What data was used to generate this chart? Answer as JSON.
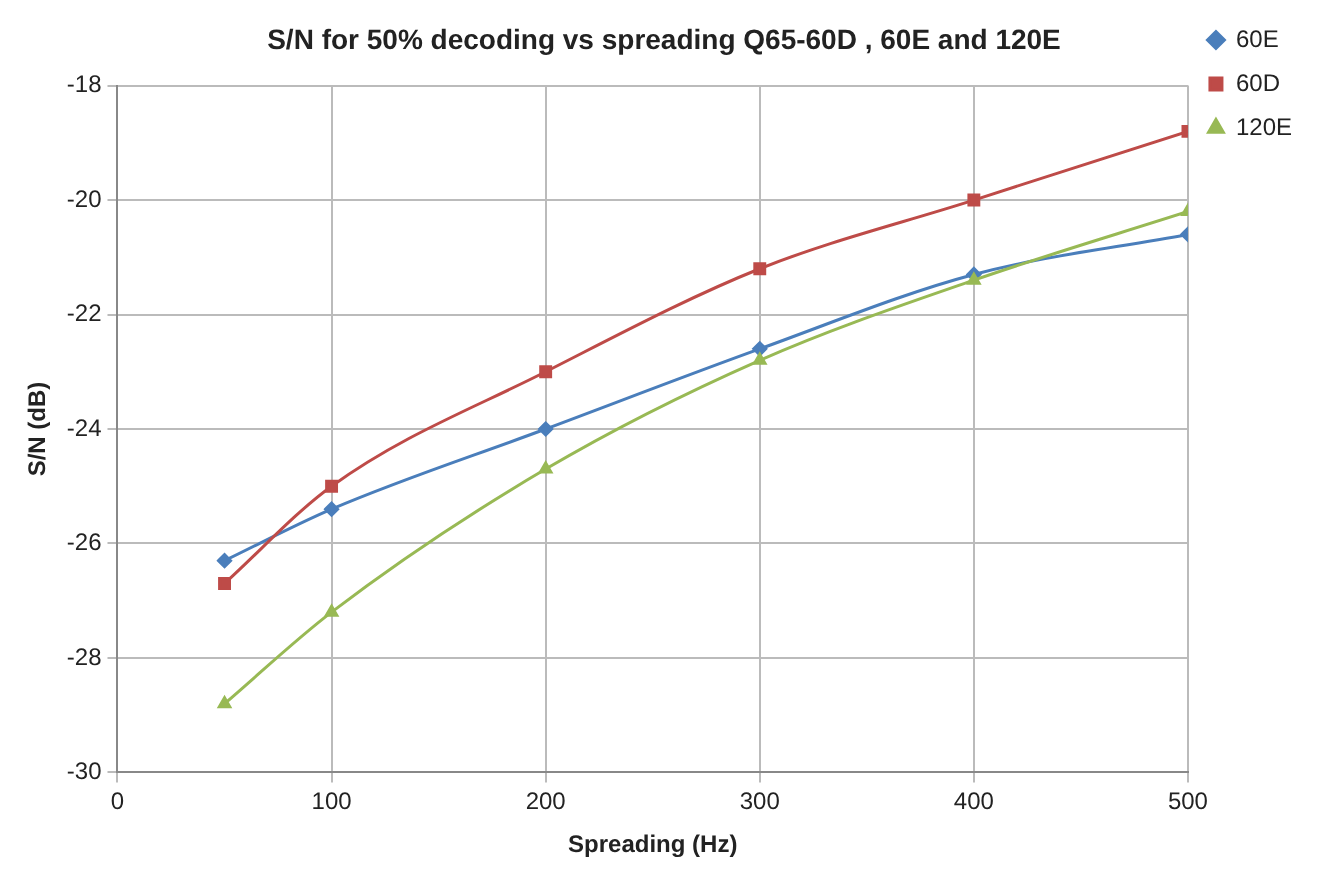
{
  "chart_data": {
    "type": "line",
    "title": "S/N for 50% decoding vs spreading Q65-60D , 60E and 120E",
    "xlabel": "Spreading (Hz)",
    "ylabel": "S/N (dB)",
    "x": [
      50,
      100,
      200,
      300,
      400,
      500
    ],
    "series": [
      {
        "name": "60E",
        "color": "#4a7ebb",
        "marker": "diamond",
        "values": [
          -26.3,
          -25.4,
          -24.0,
          -22.6,
          -21.3,
          -20.6
        ]
      },
      {
        "name": "60D",
        "color": "#be4b48",
        "marker": "square",
        "values": [
          -26.7,
          -25.0,
          -23.0,
          -21.2,
          -20.0,
          -18.8
        ]
      },
      {
        "name": "120E",
        "color": "#98b954",
        "marker": "triangle",
        "values": [
          -28.8,
          -27.2,
          -24.7,
          -22.8,
          -21.4,
          -20.2
        ]
      }
    ],
    "xlim": [
      0,
      500
    ],
    "xticks": [
      0,
      100,
      200,
      300,
      400,
      500
    ],
    "ylim": [
      -30,
      -18
    ],
    "yticks": [
      -30,
      -28,
      -26,
      -24,
      -22,
      -20,
      -18
    ],
    "grid": true,
    "legend": "right",
    "line_style": "solid"
  }
}
